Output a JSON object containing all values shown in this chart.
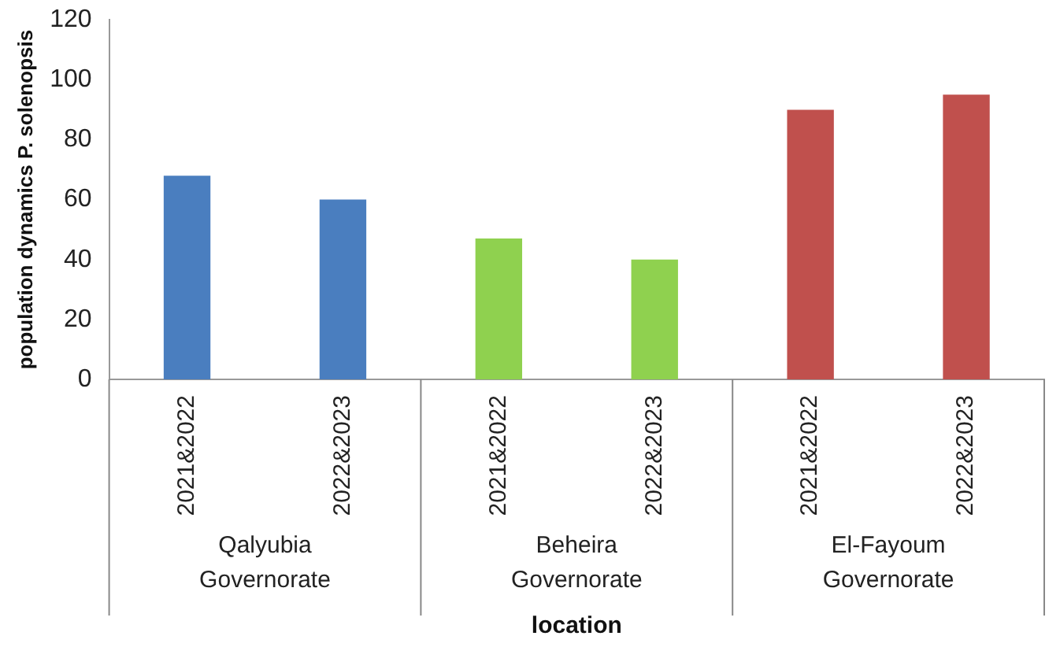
{
  "chart_data": {
    "type": "bar",
    "xlabel": "location",
    "ylabel": "population dynamics P. solenopsis",
    "categories": [
      "2021&2022",
      "2022&2023",
      "2021&2022",
      "2022&2023",
      "2021&2022",
      "2022&2023"
    ],
    "values": [
      68,
      60,
      47,
      40,
      90,
      95
    ],
    "colors": [
      "#4a7ebf",
      "#4a7ebf",
      "#8fd14f",
      "#8fd14f",
      "#c0504d",
      "#c0504d"
    ],
    "annotations": [
      "Qalyubia Governorate",
      "Beheira Governorate",
      "El-Fayoum Governorate"
    ],
    "ylim": [
      0,
      120
    ],
    "yticks": [
      0,
      20,
      40,
      60,
      80,
      100,
      120
    ],
    "grid": false,
    "legend": false
  }
}
